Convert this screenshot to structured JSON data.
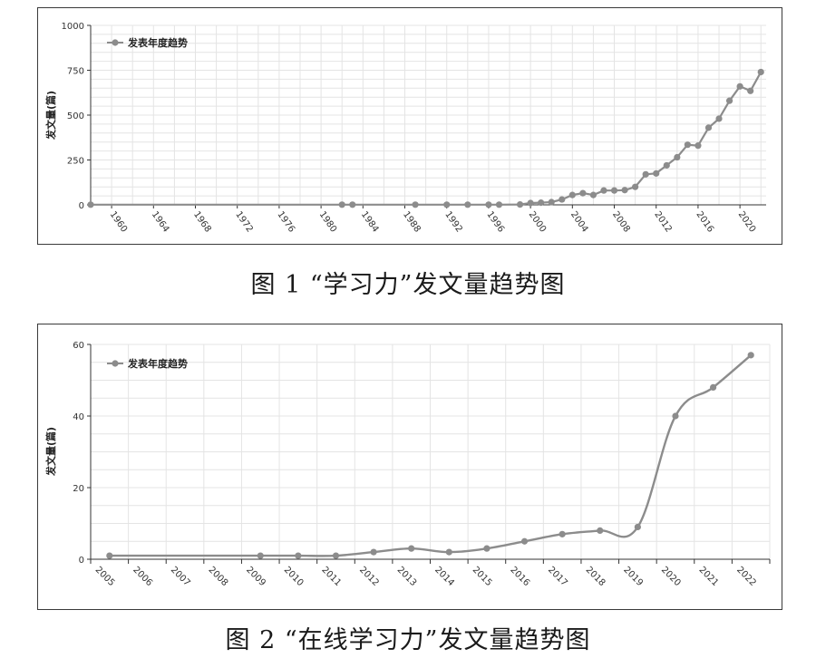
{
  "chart_data": [
    {
      "type": "line",
      "title": "",
      "caption": "图 1 “学习力”发文量趋势图",
      "xlabel": "",
      "ylabel": "发文量(篇)",
      "legend": "发表年度趋势",
      "legend_position": "top-left",
      "grid": true,
      "xlim": [
        1958,
        2022.5
      ],
      "ylim": [
        0,
        1000
      ],
      "y_ticks": [
        0,
        250,
        500,
        750,
        1000
      ],
      "x_tick_labels": [
        "1960",
        "1964",
        "1968",
        "1972",
        "1976",
        "1980",
        "1984",
        "1988",
        "1992",
        "1996",
        "2000",
        "2004",
        "2008",
        "2012",
        "2016",
        "2020"
      ],
      "series": [
        {
          "name": "发表年度趋势",
          "x": [
            1958,
            1982,
            1983,
            1989,
            1992,
            1994,
            1996,
            1997,
            1999,
            2000,
            2001,
            2002,
            2003,
            2004,
            2005,
            2006,
            2007,
            2008,
            2009,
            2010,
            2011,
            2012,
            2013,
            2014,
            2015,
            2016,
            2017,
            2018,
            2019,
            2020,
            2021,
            2022
          ],
          "y": [
            1,
            1,
            1,
            1,
            1,
            1,
            1,
            1,
            2,
            10,
            12,
            15,
            30,
            55,
            65,
            55,
            80,
            80,
            82,
            100,
            170,
            175,
            220,
            265,
            335,
            330,
            430,
            480,
            580,
            660,
            635,
            740
          ]
        }
      ]
    },
    {
      "type": "line",
      "title": "",
      "caption": "图 2 “在线学习力”发文量趋势图",
      "xlabel": "",
      "ylabel": "发文量(篇)",
      "legend": "发表年度趋势",
      "legend_position": "top-left",
      "grid": true,
      "ylim": [
        0,
        60
      ],
      "y_ticks": [
        0,
        20,
        40,
        60
      ],
      "categories": [
        "2005",
        "2006",
        "2007",
        "2008",
        "2009",
        "2010",
        "2011",
        "2012",
        "2013",
        "2014",
        "2015",
        "2016",
        "2017",
        "2018",
        "2019",
        "2020",
        "2021",
        "2022"
      ],
      "series": [
        {
          "name": "发表年度趋势",
          "values": [
            1,
            1,
            1,
            1,
            1,
            1,
            1,
            2,
            3,
            2,
            3,
            5,
            7,
            8,
            9,
            40,
            48,
            57
          ],
          "markers": [
            true,
            false,
            false,
            false,
            true,
            true,
            true,
            true,
            true,
            true,
            true,
            true,
            true,
            true,
            true,
            true,
            true,
            true
          ]
        }
      ]
    }
  ],
  "colors": {
    "line": "#8c8c8c",
    "marker": "#8c8c8c",
    "grid": "#e4e4e4",
    "axis": "#333333",
    "border": "#3a3a3a"
  }
}
